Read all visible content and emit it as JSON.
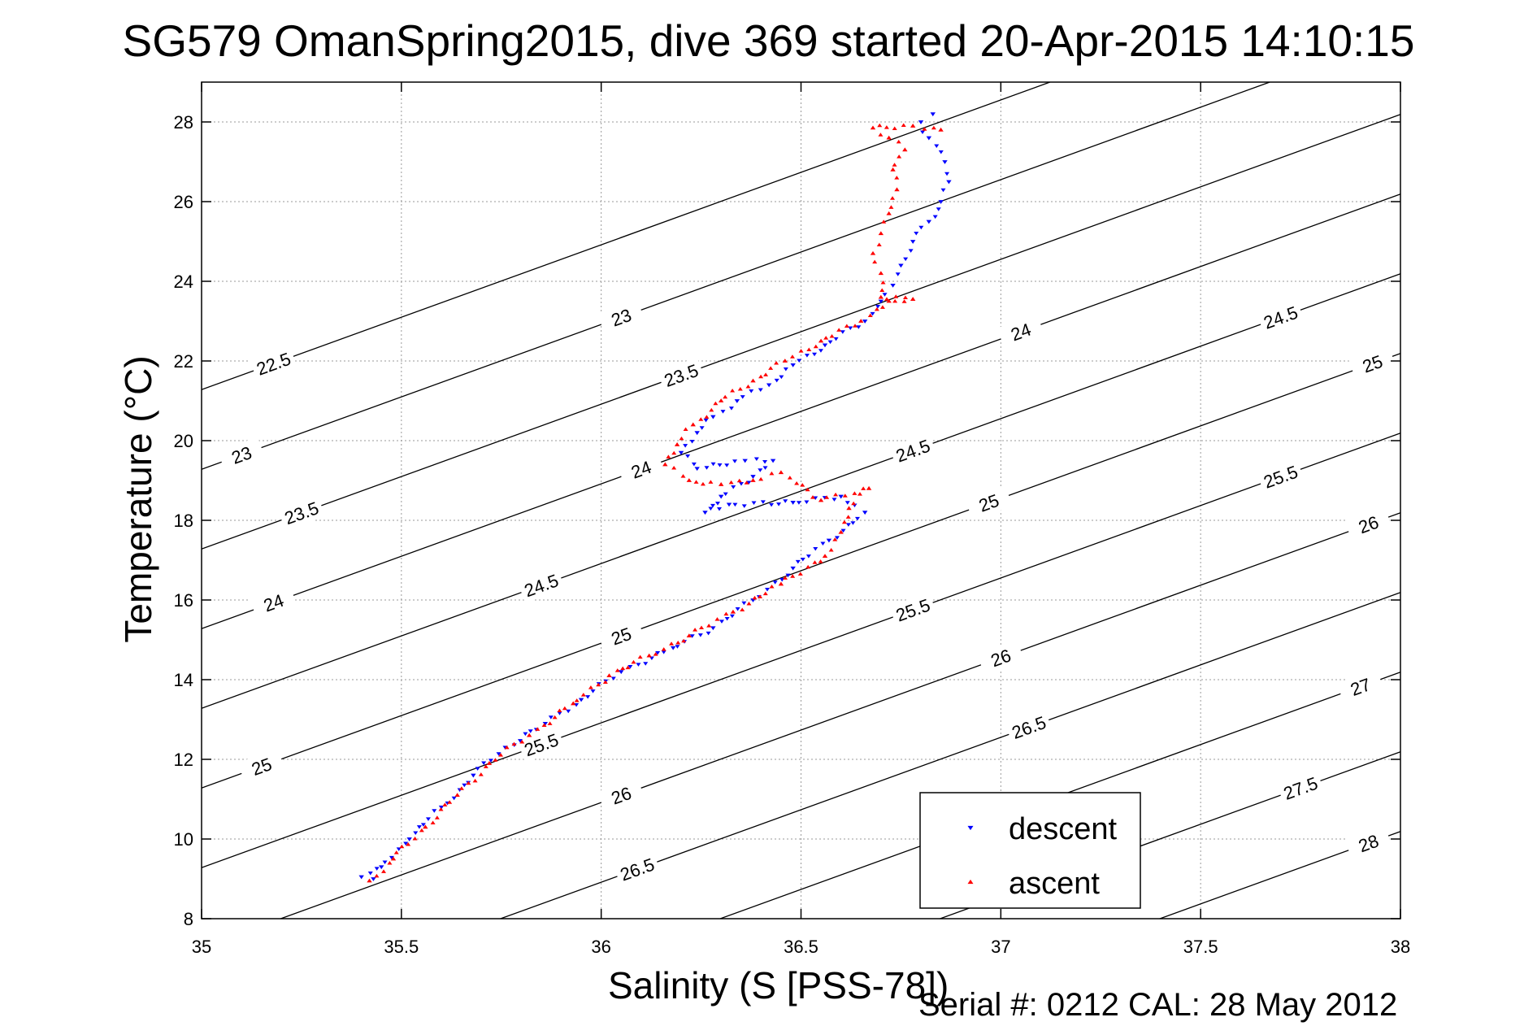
{
  "figure": {
    "title": "SG579 OmanSpring2015, dive 369 started 20-Apr-2015 14:10:15",
    "footnote": "Serial #: 0212  CAL: 28 May 2012"
  },
  "chart_data": {
    "type": "scatter",
    "xlabel": "Salinity (S [PSS-78])",
    "ylabel": "Temperature (°C)",
    "xlim": [
      35,
      38
    ],
    "ylim": [
      8,
      29
    ],
    "xticks": [
      "35",
      "35.5",
      "36",
      "36.5",
      "37",
      "37.5",
      "38"
    ],
    "yticks": [
      "8",
      "10",
      "12",
      "14",
      "16",
      "18",
      "20",
      "22",
      "24",
      "26",
      "28"
    ],
    "grid": true,
    "legend_position": "bottom-right",
    "contours": {
      "levels": [
        "22.5",
        "23",
        "23.5",
        "24",
        "24.5",
        "25",
        "25.5",
        "26",
        "26.5",
        "27",
        "27.5",
        "28"
      ],
      "color": "#000000"
    },
    "series": [
      {
        "name": "descent",
        "marker": "triangle-down",
        "color": "#0000ff",
        "points": [
          [
            35.43,
            9.0
          ],
          [
            35.4,
            9.05
          ],
          [
            35.45,
            9.3
          ],
          [
            35.52,
            10.0
          ],
          [
            35.6,
            10.8
          ],
          [
            35.68,
            11.6
          ],
          [
            35.76,
            12.3
          ],
          [
            35.86,
            12.9
          ],
          [
            35.95,
            13.5
          ],
          [
            36.05,
            14.2
          ],
          [
            36.18,
            14.8
          ],
          [
            36.28,
            15.3
          ],
          [
            36.38,
            16.0
          ],
          [
            36.48,
            16.8
          ],
          [
            36.57,
            17.5
          ],
          [
            36.66,
            18.2
          ],
          [
            36.6,
            18.6
          ],
          [
            36.48,
            18.45
          ],
          [
            36.32,
            18.4
          ],
          [
            36.26,
            18.2
          ],
          [
            36.3,
            18.6
          ],
          [
            36.38,
            19.1
          ],
          [
            36.43,
            19.5
          ],
          [
            36.36,
            19.5
          ],
          [
            36.24,
            19.3
          ],
          [
            36.2,
            19.7
          ],
          [
            36.24,
            20.2
          ],
          [
            36.28,
            20.6
          ],
          [
            36.34,
            21.0
          ],
          [
            36.42,
            21.4
          ],
          [
            36.48,
            21.9
          ],
          [
            36.56,
            22.4
          ],
          [
            36.66,
            23.0
          ],
          [
            36.7,
            23.5
          ],
          [
            36.73,
            23.9
          ],
          [
            36.75,
            24.4
          ],
          [
            36.78,
            25.0
          ],
          [
            36.82,
            25.5
          ],
          [
            36.85,
            26.0
          ],
          [
            36.87,
            26.5
          ],
          [
            36.86,
            27.0
          ],
          [
            36.82,
            27.6
          ],
          [
            36.8,
            28.0
          ],
          [
            36.83,
            28.2
          ]
        ]
      },
      {
        "name": "ascent",
        "marker": "triangle-up",
        "color": "#ff0000",
        "points": [
          [
            35.42,
            8.95
          ],
          [
            35.48,
            9.5
          ],
          [
            35.56,
            10.3
          ],
          [
            35.64,
            11.1
          ],
          [
            35.72,
            11.9
          ],
          [
            35.82,
            12.6
          ],
          [
            35.93,
            13.4
          ],
          [
            36.02,
            14.1
          ],
          [
            36.12,
            14.6
          ],
          [
            36.22,
            15.1
          ],
          [
            36.33,
            15.7
          ],
          [
            36.45,
            16.4
          ],
          [
            36.56,
            17.1
          ],
          [
            36.6,
            17.7
          ],
          [
            36.62,
            18.3
          ],
          [
            36.67,
            18.8
          ],
          [
            36.55,
            18.5
          ],
          [
            36.45,
            19.2
          ],
          [
            36.38,
            19.0
          ],
          [
            36.3,
            18.9
          ],
          [
            36.22,
            19.0
          ],
          [
            36.16,
            19.4
          ],
          [
            36.19,
            19.9
          ],
          [
            36.23,
            20.4
          ],
          [
            36.3,
            21.0
          ],
          [
            36.38,
            21.5
          ],
          [
            36.46,
            22.0
          ],
          [
            36.55,
            22.5
          ],
          [
            36.65,
            23.0
          ],
          [
            36.72,
            23.5
          ],
          [
            36.78,
            23.55
          ],
          [
            36.7,
            23.6
          ],
          [
            36.7,
            24.2
          ],
          [
            36.68,
            24.7
          ],
          [
            36.7,
            25.2
          ],
          [
            36.72,
            25.7
          ],
          [
            36.74,
            26.3
          ],
          [
            36.73,
            26.8
          ],
          [
            36.76,
            27.3
          ],
          [
            36.72,
            27.6
          ],
          [
            36.68,
            27.85
          ],
          [
            36.78,
            27.9
          ],
          [
            36.85,
            27.8
          ]
        ]
      }
    ]
  }
}
